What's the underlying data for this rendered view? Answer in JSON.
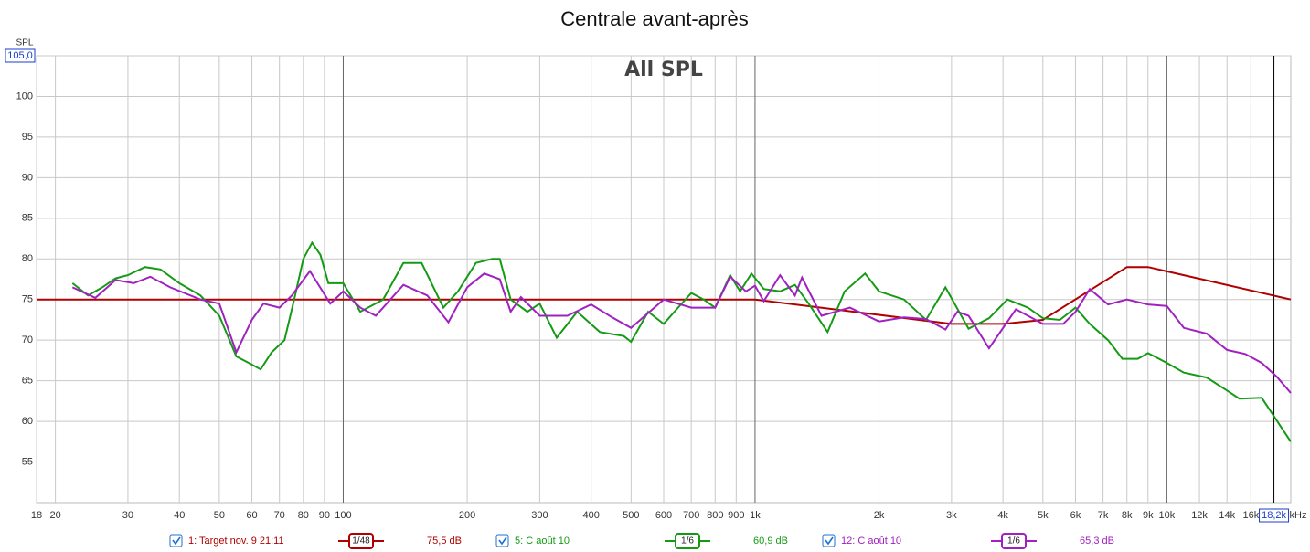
{
  "chart_data": {
    "type": "line",
    "title": "Centrale avant-après",
    "annotation": "All SPL",
    "ylabel": "SPL",
    "x_unit": "kHz",
    "log_x": true,
    "grid": true,
    "xlim": [
      18,
      20000
    ],
    "ylim": [
      50,
      105
    ],
    "xticks": [
      18,
      20,
      30,
      40,
      50,
      60,
      70,
      80,
      90,
      100,
      200,
      300,
      400,
      500,
      600,
      700,
      800,
      900,
      {
        "value": 1000,
        "label": "1k"
      },
      {
        "value": 2000,
        "label": "2k"
      },
      {
        "value": 3000,
        "label": "3k"
      },
      {
        "value": 4000,
        "label": "4k"
      },
      {
        "value": 5000,
        "label": "5k"
      },
      {
        "value": 6000,
        "label": "6k"
      },
      {
        "value": 7000,
        "label": "7k"
      },
      {
        "value": 8000,
        "label": "8k"
      },
      {
        "value": 9000,
        "label": "9k"
      },
      {
        "value": 10000,
        "label": "10k"
      },
      {
        "value": 12000,
        "label": "12k"
      },
      {
        "value": 14000,
        "label": "14k"
      },
      {
        "value": 16000,
        "label": "16k"
      }
    ],
    "yticks": [
      55,
      60,
      65,
      70,
      75,
      80,
      85,
      90,
      95,
      100,
      {
        "value": 105,
        "label": "105,0"
      }
    ],
    "cursor": {
      "value": 18200,
      "label": "18,2k"
    },
    "series": [
      {
        "name": "1: Target nov. 9 21:11",
        "smoothing": "1/48",
        "level": "75,5 dB",
        "color": "#b00000",
        "x": [
          18,
          1000,
          3000,
          4000,
          5000,
          8000,
          9000,
          20000
        ],
        "values": [
          75,
          75,
          72,
          72,
          72.5,
          79,
          79,
          75
        ]
      },
      {
        "name": "5: C août 10",
        "smoothing": "1/6",
        "level": "60,9 dB",
        "color": "#159a15",
        "x": [
          22,
          24,
          26,
          28,
          30,
          33,
          36,
          40,
          45,
          50,
          55,
          60,
          63,
          67,
          72,
          76,
          80,
          84,
          88,
          92,
          100,
          110,
          125,
          140,
          155,
          175,
          190,
          210,
          230,
          240,
          255,
          280,
          300,
          330,
          370,
          420,
          480,
          500,
          550,
          600,
          650,
          700,
          750,
          800,
          870,
          920,
          980,
          1050,
          1150,
          1250,
          1350,
          1500,
          1650,
          1850,
          2000,
          2300,
          2600,
          2900,
          3300,
          3700,
          4100,
          4600,
          5000,
          5500,
          6000,
          6500,
          7200,
          7800,
          8500,
          9000,
          10000,
          11000,
          12500,
          14000,
          15000,
          17000,
          18000,
          20000
        ],
        "values": [
          77,
          75.5,
          76.5,
          77.6,
          78,
          79,
          78.7,
          77,
          75.5,
          73,
          68,
          67,
          66.4,
          68.5,
          70,
          75,
          80,
          82,
          80.5,
          77,
          77,
          73.5,
          75,
          79.5,
          79.5,
          74,
          76,
          79.5,
          80,
          80,
          75,
          73.5,
          74.5,
          70.3,
          73.5,
          71,
          70.5,
          69.8,
          73.5,
          72,
          74,
          75.8,
          75,
          74,
          78,
          76,
          78.2,
          76.3,
          76,
          76.8,
          74.5,
          71,
          76,
          78.2,
          76,
          75,
          72.5,
          76.5,
          71.4,
          72.7,
          75,
          74,
          72.7,
          72.5,
          74,
          72,
          70,
          67.7,
          67.7,
          68.4,
          67.2,
          66,
          65.4,
          63.8,
          62.8,
          62.9,
          61,
          57.5
        ]
      },
      {
        "name": "12: C août 10",
        "smoothing": "1/6",
        "level": "65,3 dB",
        "color": "#a020c0",
        "x": [
          22,
          25,
          28,
          31,
          34,
          38,
          45,
          50,
          55,
          60,
          64,
          70,
          75,
          83,
          93,
          100,
          110,
          120,
          140,
          160,
          180,
          200,
          220,
          240,
          255,
          270,
          300,
          350,
          400,
          450,
          500,
          600,
          700,
          800,
          870,
          950,
          1000,
          1050,
          1150,
          1250,
          1300,
          1450,
          1700,
          2000,
          2300,
          2600,
          2900,
          3100,
          3300,
          3700,
          4300,
          5000,
          5600,
          6000,
          6500,
          7200,
          8000,
          9000,
          10000,
          11000,
          12500,
          14000,
          15500,
          17000,
          18500,
          20000
        ],
        "values": [
          76.5,
          75.2,
          77.4,
          77,
          77.8,
          76.5,
          75,
          74.5,
          68.5,
          72.5,
          74.5,
          74,
          75.5,
          78.5,
          74.5,
          76,
          74,
          73,
          76.8,
          75.5,
          72.2,
          76.5,
          78.2,
          77.5,
          73.5,
          75.3,
          73,
          73,
          74.4,
          72.8,
          71.5,
          75,
          74,
          74,
          77.8,
          76,
          76.7,
          74.8,
          78,
          75.5,
          77.7,
          73,
          74,
          72.3,
          72.8,
          72.6,
          71.3,
          73.5,
          73,
          69,
          73.8,
          72,
          72,
          73.5,
          76.3,
          74.4,
          75,
          74.4,
          74.2,
          71.5,
          70.8,
          68.8,
          68.3,
          67.2,
          65.5,
          63.5
        ]
      }
    ]
  }
}
